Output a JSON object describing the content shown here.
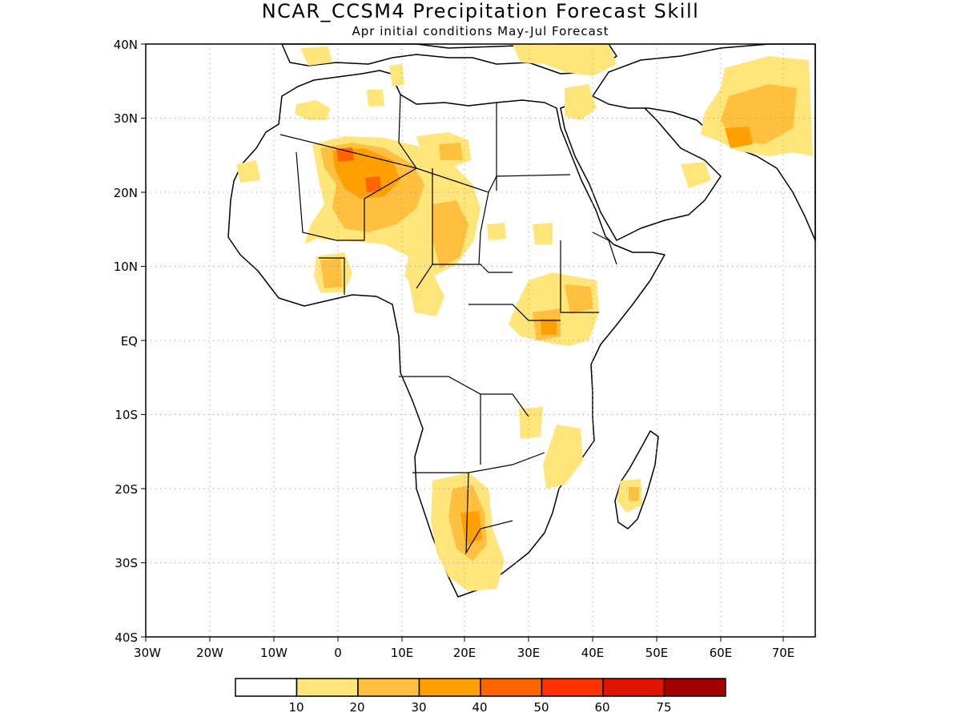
{
  "map": {
    "title": "NCAR_CCSM4 Precipitation Forecast Skill",
    "subtitle": "Apr initial conditions  May-Jul Forecast",
    "lat_ticks": [
      "40N",
      "30N",
      "20N",
      "10N",
      "EQ",
      "10S",
      "20S",
      "30S",
      "40S"
    ],
    "lon_ticks": [
      "30W",
      "20W",
      "10W",
      "0",
      "10E",
      "20E",
      "30E",
      "40E",
      "50E",
      "60E",
      "70E"
    ]
  },
  "colorbar": {
    "labels": [
      "10",
      "20",
      "30",
      "40",
      "50",
      "60",
      "75"
    ],
    "colors": [
      "#ffffff",
      "#ffe57a",
      "#ffc040",
      "#ffa000",
      "#ff6400",
      "#ff3200",
      "#e11400",
      "#a50000"
    ]
  },
  "colors": {
    "level_10_20": "#ffe57a",
    "level_20_30": "#ffc040",
    "level_30_40": "#ffa000",
    "level_40_50": "#ff6400"
  }
}
